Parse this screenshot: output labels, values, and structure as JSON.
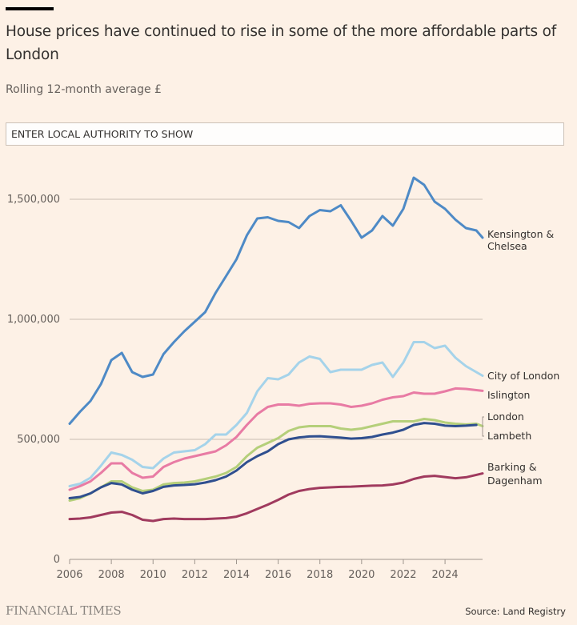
{
  "header": {
    "title": "House prices have continued to rise in some of the more affordable parts of London",
    "subtitle": "Rolling 12-month average £"
  },
  "search": {
    "placeholder": "ENTER LOCAL AUTHORITY TO SHOW",
    "value": ""
  },
  "footer": {
    "logo": "FINANCIAL TIMES",
    "source": "Source: Land Registry"
  },
  "chart_data": {
    "type": "line",
    "title": "House prices have continued to rise in some of the more affordable parts of London",
    "subtitle": "Rolling 12-month average £",
    "xlabel": "",
    "ylabel": "",
    "xlim": [
      2006,
      2025.8
    ],
    "ylim": [
      0,
      1500000
    ],
    "x_ticks": [
      2006,
      2008,
      2010,
      2012,
      2014,
      2016,
      2018,
      2020,
      2022,
      2024
    ],
    "y_ticks": [
      0,
      500000,
      1000000,
      1500000
    ],
    "y_tick_labels": [
      "0",
      "500,000",
      "1,000,000",
      "1,500,000"
    ],
    "grid": true,
    "legend": "direct-labels-right",
    "x": [
      2006,
      2006.5,
      2007,
      2007.5,
      2008,
      2008.5,
      2009,
      2009.5,
      2010,
      2010.5,
      2011,
      2011.5,
      2012,
      2012.5,
      2013,
      2013.5,
      2014,
      2014.5,
      2015,
      2015.5,
      2016,
      2016.5,
      2017,
      2017.5,
      2018,
      2018.5,
      2019,
      2019.5,
      2020,
      2020.5,
      2021,
      2021.5,
      2022,
      2022.5,
      2023,
      2023.5,
      2024,
      2024.5,
      2025,
      2025.5,
      2025.8
    ],
    "series": [
      {
        "name": "Kensington & Chelsea",
        "label_lines": [
          "Kensington &",
          "Chelsea"
        ],
        "color": "#4e8ac6",
        "values": [
          565000,
          615000,
          660000,
          730000,
          830000,
          860000,
          780000,
          760000,
          770000,
          855000,
          905000,
          950000,
          990000,
          1030000,
          1110000,
          1180000,
          1250000,
          1350000,
          1420000,
          1425000,
          1410000,
          1405000,
          1380000,
          1430000,
          1455000,
          1450000,
          1475000,
          1410000,
          1340000,
          1370000,
          1430000,
          1390000,
          1460000,
          1590000,
          1560000,
          1490000,
          1460000,
          1415000,
          1380000,
          1370000,
          1340000
        ]
      },
      {
        "name": "City of London",
        "label_lines": [
          "City of London"
        ],
        "color": "#a5d3ea",
        "values": [
          305000,
          315000,
          340000,
          390000,
          445000,
          435000,
          415000,
          385000,
          380000,
          420000,
          445000,
          450000,
          455000,
          480000,
          520000,
          520000,
          560000,
          610000,
          700000,
          755000,
          750000,
          770000,
          820000,
          845000,
          835000,
          780000,
          790000,
          790000,
          790000,
          810000,
          820000,
          760000,
          820000,
          905000,
          905000,
          880000,
          890000,
          840000,
          805000,
          780000,
          765000
        ]
      },
      {
        "name": "Islington",
        "label_lines": [
          "Islington"
        ],
        "color": "#e87ba4",
        "values": [
          290000,
          305000,
          325000,
          360000,
          400000,
          400000,
          360000,
          340000,
          345000,
          385000,
          405000,
          420000,
          430000,
          440000,
          450000,
          475000,
          510000,
          560000,
          605000,
          635000,
          645000,
          645000,
          640000,
          648000,
          650000,
          650000,
          645000,
          635000,
          640000,
          650000,
          665000,
          675000,
          680000,
          695000,
          690000,
          690000,
          700000,
          712000,
          710000,
          705000,
          702000
        ]
      },
      {
        "name": "London",
        "label_lines": [
          "London"
        ],
        "color": "#b5cf7a",
        "values": [
          245000,
          255000,
          275000,
          300000,
          325000,
          325000,
          300000,
          285000,
          290000,
          312000,
          318000,
          320000,
          325000,
          335000,
          345000,
          360000,
          385000,
          430000,
          465000,
          485000,
          505000,
          535000,
          550000,
          555000,
          555000,
          555000,
          545000,
          540000,
          545000,
          555000,
          565000,
          575000,
          575000,
          575000,
          585000,
          580000,
          570000,
          565000,
          562000,
          565000,
          555000
        ]
      },
      {
        "name": "Lambeth",
        "label_lines": [
          "Lambeth"
        ],
        "color": "#2f4f8f",
        "values": [
          255000,
          260000,
          275000,
          300000,
          318000,
          312000,
          290000,
          275000,
          285000,
          302000,
          308000,
          310000,
          313000,
          320000,
          330000,
          345000,
          370000,
          405000,
          430000,
          450000,
          480000,
          500000,
          508000,
          512000,
          513000,
          510000,
          507000,
          503000,
          505000,
          510000,
          520000,
          528000,
          540000,
          560000,
          568000,
          565000,
          557000,
          555000,
          557000,
          560000,
          null
        ]
      },
      {
        "name": "Barking & Dagenham",
        "label_lines": [
          "Barking &",
          "Dagenham"
        ],
        "color": "#a03a5e",
        "values": [
          168000,
          170000,
          175000,
          185000,
          195000,
          198000,
          185000,
          165000,
          160000,
          168000,
          170000,
          168000,
          168000,
          168000,
          170000,
          172000,
          178000,
          192000,
          210000,
          228000,
          248000,
          270000,
          285000,
          293000,
          298000,
          300000,
          302000,
          303000,
          305000,
          307000,
          308000,
          312000,
          320000,
          335000,
          345000,
          348000,
          343000,
          338000,
          342000,
          352000,
          358000
        ]
      }
    ]
  }
}
